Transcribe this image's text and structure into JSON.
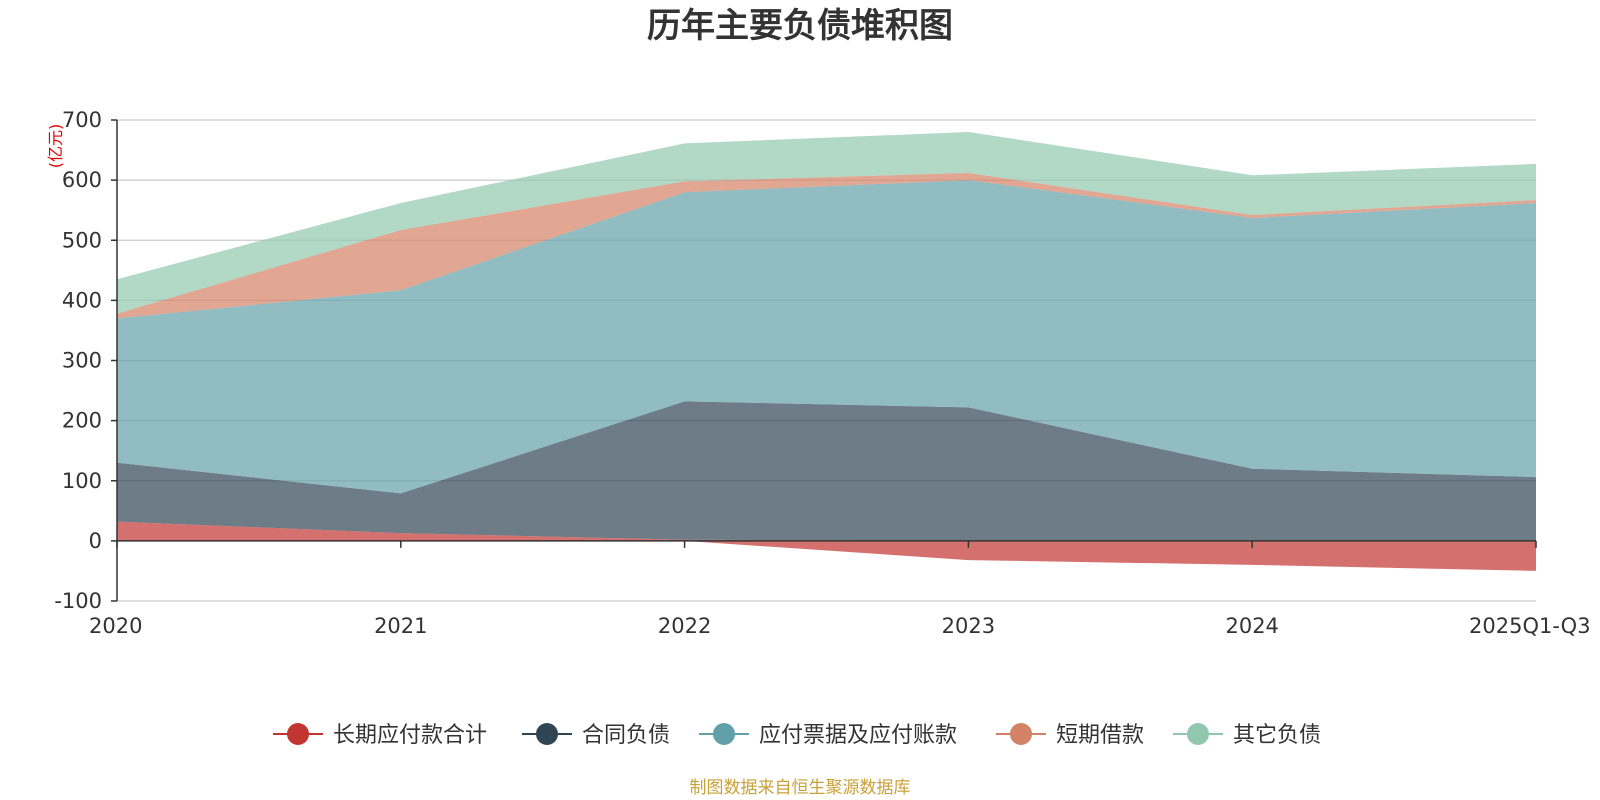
{
  "chart_data": {
    "type": "area",
    "stacked": true,
    "title": "历年主要负债堆积图",
    "ylabel": "(亿元)",
    "xlabel": "",
    "categories": [
      "2020",
      "2021",
      "2022",
      "2023",
      "2024",
      "2025Q1-Q3"
    ],
    "ylim": [
      -100,
      700
    ],
    "yticks": [
      700,
      600,
      500,
      400,
      300,
      200,
      100,
      0,
      -100
    ],
    "grid": true,
    "legend_position": "bottom",
    "series": [
      {
        "name": "长期应付款合计",
        "color": "#c23531",
        "values": [
          32,
          13,
          2,
          -32,
          -40,
          -50
        ]
      },
      {
        "name": "合同负债",
        "color": "#2f4554",
        "values": [
          98,
          66,
          230,
          222,
          120,
          106
        ]
      },
      {
        "name": "应付票据及应付账款",
        "color": "#61a0a8",
        "values": [
          240,
          338,
          348,
          378,
          417,
          456
        ]
      },
      {
        "name": "短期借款",
        "color": "#d48265",
        "values": [
          8,
          100,
          18,
          12,
          5,
          5
        ]
      },
      {
        "name": "其它负债",
        "color": "#91c7ae",
        "values": [
          57,
          45,
          63,
          68,
          66,
          60
        ]
      }
    ],
    "source": "制图数据来自恒生聚源数据库"
  }
}
